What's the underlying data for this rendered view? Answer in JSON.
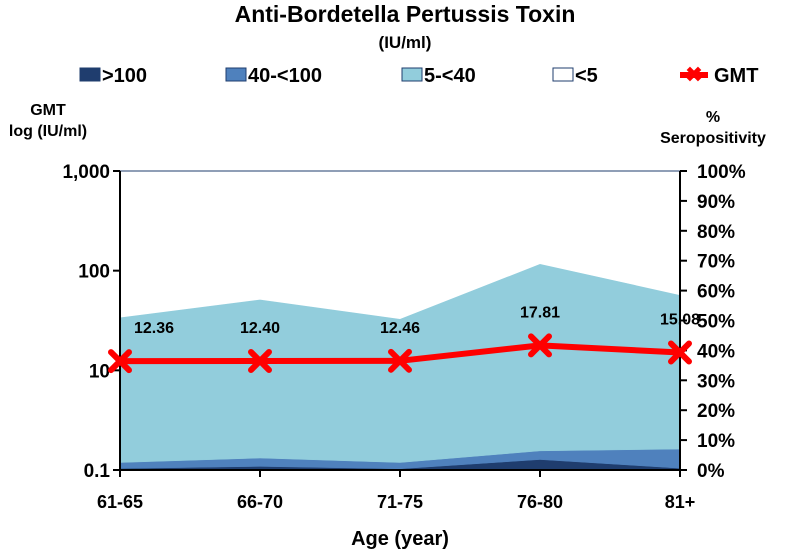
{
  "chart_data": {
    "type": "area",
    "title": "Anti-Bordetella Pertussis Toxin",
    "subtitle": "(IU/ml)",
    "xlabel": "Age (year)",
    "ylabel_left": [
      "GMT",
      "log (IU/ml)"
    ],
    "ylabel_right": [
      "%",
      "Seropositivity"
    ],
    "categories": [
      "61-65",
      "66-70",
      "71-75",
      "76-80",
      "81+"
    ],
    "y_left": {
      "scale": "log",
      "range": [
        0.1,
        1000
      ],
      "ticks": [
        0.1,
        10,
        100,
        1000
      ],
      "tick_labels": [
        "0.1",
        "10",
        "100",
        "1,000"
      ]
    },
    "y_right": {
      "range": [
        0,
        100
      ],
      "ticks": [
        0,
        10,
        20,
        30,
        40,
        50,
        60,
        70,
        80,
        90,
        100
      ],
      "tick_labels": [
        "0%",
        "10%",
        "20%",
        "30%",
        "40%",
        "50%",
        "60%",
        "70%",
        "80%",
        "90%",
        "100%"
      ]
    },
    "series": [
      {
        "name": ">100",
        "kind": "stacked-area",
        "color": "#1F3D6E",
        "values": [
          0.5,
          1.2,
          0.4,
          3.5,
          0.6
        ]
      },
      {
        "name": "40-<100",
        "kind": "stacked-area",
        "color": "#4F81BD",
        "values": [
          2.0,
          2.8,
          2.1,
          2.9,
          6.4
        ]
      },
      {
        "name": "5-<40",
        "kind": "stacked-area",
        "color": "#92CDDC",
        "values": [
          48.5,
          53.0,
          48.0,
          62.5,
          51.5
        ]
      },
      {
        "name": "<5",
        "kind": "stacked-area",
        "color": "#FFFFFF",
        "values": [
          49.0,
          43.0,
          49.5,
          31.1,
          41.5
        ]
      },
      {
        "name": "GMT",
        "kind": "line",
        "axis": "left",
        "color": "#FF0000",
        "values": [
          12.36,
          12.4,
          12.46,
          17.81,
          15.08
        ],
        "labels": [
          "12.36",
          "12.40",
          "12.46",
          "17.81",
          "15.08"
        ]
      }
    ]
  }
}
